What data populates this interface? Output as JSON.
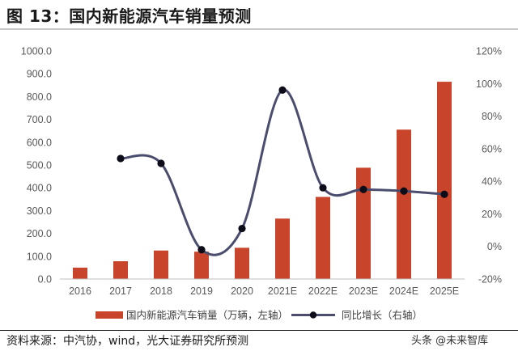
{
  "header": {
    "title": "图 13：国内新能源汽车销量预测"
  },
  "footer": {
    "source": "资料来源：中汽协，wind，光大证券研究所预测",
    "watermark": "头条 @未来智库"
  },
  "colors": {
    "bar": "#c8442b",
    "line": "#4b4d6e",
    "marker": "#0d0d1a",
    "grid_axis": "#bfbfbf"
  },
  "chart_data": {
    "type": "bar",
    "categories": [
      "2016",
      "2017",
      "2018",
      "2019",
      "2020",
      "2021E",
      "2022E",
      "2023E",
      "2024E",
      "2025E"
    ],
    "series": [
      {
        "name": "国内新能源汽车销量（万辆，左轴）",
        "type": "bar",
        "axis": "left",
        "values": [
          50,
          78,
          125,
          120,
          137,
          265,
          360,
          488,
          655,
          865
        ]
      },
      {
        "name": "同比增长（右轴）",
        "type": "line",
        "axis": "right",
        "smooth": true,
        "marker": "circle",
        "values": [
          null,
          0.54,
          0.51,
          -0.02,
          0.11,
          0.96,
          0.36,
          0.35,
          0.34,
          0.32
        ]
      }
    ],
    "y_left": {
      "ylim": [
        0,
        1000
      ],
      "ticks": [
        "0.0",
        "100.0",
        "200.0",
        "300.0",
        "400.0",
        "500.0",
        "600.0",
        "700.0",
        "800.0",
        "900.0",
        "1000.0"
      ]
    },
    "y_right": {
      "ylim": [
        -0.2,
        1.2
      ],
      "ticks": [
        "-20%",
        "0%",
        "20%",
        "40%",
        "60%",
        "80%",
        "100%",
        "120%"
      ]
    },
    "xlabel": "",
    "ylabel": "",
    "grid": false,
    "legend_position": "bottom"
  }
}
